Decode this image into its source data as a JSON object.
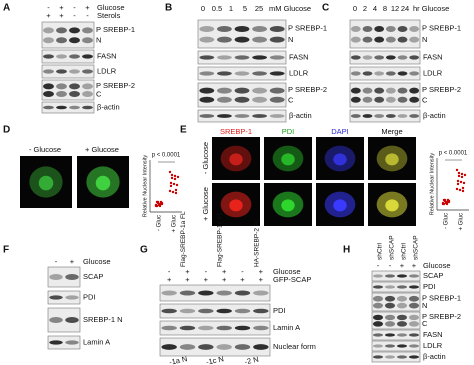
{
  "A": {
    "letter": "A",
    "header": [
      {
        "signs": [
          "-",
          "+",
          "-",
          "+"
        ],
        "name": "Glucose"
      },
      {
        "signs": [
          "+",
          "+",
          "-",
          "-"
        ],
        "name": "Sterols"
      }
    ],
    "rows": [
      {
        "label": "SREBP-1",
        "forms": [
          "P",
          "N"
        ]
      },
      {
        "label": "FASN"
      },
      {
        "label": "LDLR"
      },
      {
        "label": "SREBP-2",
        "forms": [
          "P",
          "C"
        ]
      },
      {
        "label": "β-actin"
      }
    ]
  },
  "B": {
    "letter": "B",
    "doses": [
      "0",
      "0.5",
      "1",
      "5",
      "25"
    ],
    "dose_label": "mM Glucose",
    "rows": [
      {
        "label": "SREBP-1",
        "forms": [
          "P",
          "N"
        ]
      },
      {
        "label": "FASN"
      },
      {
        "label": "LDLR"
      },
      {
        "label": "SREBP-2",
        "forms": [
          "P",
          "C"
        ]
      },
      {
        "label": "β-actin"
      }
    ]
  },
  "C": {
    "letter": "C",
    "doses": [
      "0",
      "2",
      "4",
      "8",
      "12",
      "24"
    ],
    "dose_label": "hr Glucose",
    "rows": [
      {
        "label": "SREBP-1",
        "forms": [
          "P",
          "N"
        ]
      },
      {
        "label": "FASN"
      },
      {
        "label": "LDLR"
      },
      {
        "label": "SREBP-2",
        "forms": [
          "P",
          "C"
        ]
      },
      {
        "label": "β-actin"
      }
    ]
  },
  "D": {
    "letter": "D",
    "image_labels": [
      "- Glucose",
      "+ Glucose"
    ],
    "plot": {
      "p_value": "p < 0.0001",
      "y_label": "Relative Nuclear Intensity",
      "groups": [
        "- Gluc",
        "+ Gluc"
      ]
    }
  },
  "E": {
    "letter": "E",
    "channels": [
      "SREBP-1",
      "PDI",
      "DAPI",
      "Merge"
    ],
    "conditions": [
      "- Glucose",
      "+ Glucose"
    ],
    "plot": {
      "p_value": "p < 0.0001",
      "y_label": "Relative Nuclear Intensity",
      "groups": [
        "- Gluc",
        "+ Gluc"
      ]
    }
  },
  "F": {
    "letter": "F",
    "header": [
      {
        "signs": [
          "-",
          "+"
        ],
        "name": "Glucose"
      }
    ],
    "rows": [
      {
        "label": "SCAP"
      },
      {
        "label": "PDI"
      },
      {
        "label": "SREBP-1 N"
      },
      {
        "label": "Lamin A"
      }
    ]
  },
  "G": {
    "letter": "G",
    "constructs": [
      "Flag-SREBP-1a FL",
      "Flag-SREBP-1c FL",
      "HA-SREBP-2 FL"
    ],
    "header": [
      {
        "signs": [
          "-",
          "+",
          "-",
          "+",
          "-",
          "+"
        ],
        "name": "Glucose"
      },
      {
        "signs": [
          "+",
          "+",
          "+",
          "+",
          "+",
          "+"
        ],
        "name": "GFP-SCAP"
      }
    ],
    "rows": [
      {
        "label": "PDI"
      },
      {
        "label": "Lamin A"
      },
      {
        "label": "Nuclear form"
      }
    ],
    "bottom": [
      "-1a N",
      "-1c N",
      "-2 N"
    ]
  },
  "H": {
    "letter": "H",
    "shrna": [
      "shCtrl",
      "shSCAP",
      "shCtrl",
      "shSCAP"
    ],
    "header": [
      {
        "signs": [
          "-",
          "-",
          "+",
          "+"
        ],
        "name": "Glucose"
      }
    ],
    "rows": [
      {
        "label": "SCAP"
      },
      {
        "label": "PDI"
      },
      {
        "label": "SREBP-1",
        "forms": [
          "P",
          "N"
        ]
      },
      {
        "label": "SREBP-2",
        "forms": [
          "P",
          "C"
        ]
      },
      {
        "label": "FASN"
      },
      {
        "label": "LDLR"
      },
      {
        "label": "β-actin"
      }
    ]
  }
}
